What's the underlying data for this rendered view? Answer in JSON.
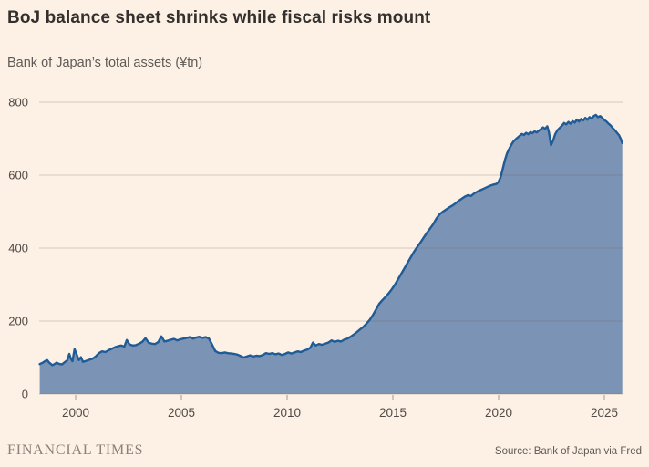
{
  "header": {
    "title": "BoJ balance sheet shrinks while fiscal risks mount",
    "subtitle": "Bank of Japan’s total assets (¥tn)"
  },
  "footer": {
    "brand": "FINANCIAL TIMES",
    "source": "Source: Bank of Japan via Fred"
  },
  "colors": {
    "background": "#fdf1e5",
    "area_fill": "#7b93b4",
    "line": "#1f5c97",
    "grid": "#66605c",
    "axis_text": "#4f4a46"
  },
  "chart_data": {
    "type": "area",
    "title": "BoJ balance sheet shrinks while fiscal risks mount",
    "ylabel": "Bank of Japan’s total assets (¥tn)",
    "xlabel": "",
    "ylim": [
      0,
      800
    ],
    "xlim": [
      1998.3,
      2025.9
    ],
    "y_ticks": [
      0,
      200,
      400,
      600,
      800
    ],
    "x_ticks": [
      2000,
      2005,
      2010,
      2015,
      2020,
      2025
    ],
    "grid": true,
    "legend_position": "none",
    "series_name": "BoJ total assets (¥tn)",
    "points": [
      [
        1998.3,
        82
      ],
      [
        1998.45,
        86
      ],
      [
        1998.55,
        90
      ],
      [
        1998.65,
        93
      ],
      [
        1998.75,
        86
      ],
      [
        1998.9,
        79
      ],
      [
        1999.0,
        82
      ],
      [
        1999.1,
        86
      ],
      [
        1999.2,
        83
      ],
      [
        1999.35,
        81
      ],
      [
        1999.5,
        88
      ],
      [
        1999.6,
        92
      ],
      [
        1999.7,
        110
      ],
      [
        1999.78,
        96
      ],
      [
        1999.85,
        90
      ],
      [
        1999.95,
        123
      ],
      [
        2000.05,
        108
      ],
      [
        2000.15,
        93
      ],
      [
        2000.25,
        101
      ],
      [
        2000.35,
        88
      ],
      [
        2000.5,
        91
      ],
      [
        2000.65,
        94
      ],
      [
        2000.8,
        97
      ],
      [
        2000.95,
        103
      ],
      [
        2001.1,
        112
      ],
      [
        2001.25,
        117
      ],
      [
        2001.4,
        115
      ],
      [
        2001.55,
        120
      ],
      [
        2001.7,
        124
      ],
      [
        2001.85,
        128
      ],
      [
        2002.0,
        131
      ],
      [
        2002.15,
        133
      ],
      [
        2002.3,
        130
      ],
      [
        2002.42,
        148
      ],
      [
        2002.55,
        136
      ],
      [
        2002.7,
        133
      ],
      [
        2002.85,
        134
      ],
      [
        2003.0,
        138
      ],
      [
        2003.15,
        143
      ],
      [
        2003.3,
        153
      ],
      [
        2003.45,
        141
      ],
      [
        2003.6,
        138
      ],
      [
        2003.75,
        137
      ],
      [
        2003.9,
        142
      ],
      [
        2004.05,
        158
      ],
      [
        2004.2,
        144
      ],
      [
        2004.35,
        146
      ],
      [
        2004.5,
        149
      ],
      [
        2004.65,
        151
      ],
      [
        2004.8,
        147
      ],
      [
        2004.95,
        150
      ],
      [
        2005.1,
        152
      ],
      [
        2005.25,
        154
      ],
      [
        2005.4,
        156
      ],
      [
        2005.55,
        152
      ],
      [
        2005.7,
        155
      ],
      [
        2005.85,
        157
      ],
      [
        2006.0,
        154
      ],
      [
        2006.15,
        156
      ],
      [
        2006.3,
        152
      ],
      [
        2006.45,
        136
      ],
      [
        2006.6,
        118
      ],
      [
        2006.75,
        113
      ],
      [
        2006.9,
        112
      ],
      [
        2007.05,
        114
      ],
      [
        2007.2,
        112
      ],
      [
        2007.35,
        111
      ],
      [
        2007.5,
        110
      ],
      [
        2007.65,
        108
      ],
      [
        2007.8,
        104
      ],
      [
        2007.95,
        100
      ],
      [
        2008.1,
        103
      ],
      [
        2008.25,
        106
      ],
      [
        2008.4,
        103
      ],
      [
        2008.55,
        105
      ],
      [
        2008.7,
        104
      ],
      [
        2008.85,
        107
      ],
      [
        2009.0,
        112
      ],
      [
        2009.15,
        110
      ],
      [
        2009.3,
        112
      ],
      [
        2009.45,
        109
      ],
      [
        2009.6,
        111
      ],
      [
        2009.75,
        107
      ],
      [
        2009.9,
        110
      ],
      [
        2010.05,
        114
      ],
      [
        2010.2,
        111
      ],
      [
        2010.35,
        114
      ],
      [
        2010.5,
        117
      ],
      [
        2010.65,
        115
      ],
      [
        2010.8,
        119
      ],
      [
        2010.95,
        122
      ],
      [
        2011.1,
        127
      ],
      [
        2011.22,
        141
      ],
      [
        2011.35,
        133
      ],
      [
        2011.5,
        137
      ],
      [
        2011.65,
        135
      ],
      [
        2011.8,
        138
      ],
      [
        2011.95,
        141
      ],
      [
        2012.1,
        147
      ],
      [
        2012.25,
        143
      ],
      [
        2012.4,
        146
      ],
      [
        2012.55,
        144
      ],
      [
        2012.7,
        149
      ],
      [
        2012.85,
        152
      ],
      [
        2013.0,
        157
      ],
      [
        2013.15,
        163
      ],
      [
        2013.3,
        170
      ],
      [
        2013.45,
        177
      ],
      [
        2013.6,
        184
      ],
      [
        2013.75,
        193
      ],
      [
        2013.9,
        203
      ],
      [
        2014.05,
        216
      ],
      [
        2014.2,
        231
      ],
      [
        2014.35,
        247
      ],
      [
        2014.5,
        257
      ],
      [
        2014.65,
        266
      ],
      [
        2014.8,
        276
      ],
      [
        2014.95,
        287
      ],
      [
        2015.1,
        300
      ],
      [
        2015.25,
        315
      ],
      [
        2015.4,
        330
      ],
      [
        2015.55,
        345
      ],
      [
        2015.7,
        360
      ],
      [
        2015.85,
        375
      ],
      [
        2016.0,
        390
      ],
      [
        2016.15,
        403
      ],
      [
        2016.3,
        415
      ],
      [
        2016.45,
        428
      ],
      [
        2016.6,
        441
      ],
      [
        2016.75,
        453
      ],
      [
        2016.9,
        465
      ],
      [
        2017.05,
        480
      ],
      [
        2017.2,
        492
      ],
      [
        2017.35,
        499
      ],
      [
        2017.5,
        505
      ],
      [
        2017.65,
        511
      ],
      [
        2017.8,
        516
      ],
      [
        2017.95,
        522
      ],
      [
        2018.1,
        529
      ],
      [
        2018.25,
        535
      ],
      [
        2018.4,
        541
      ],
      [
        2018.55,
        545
      ],
      [
        2018.7,
        543
      ],
      [
        2018.85,
        550
      ],
      [
        2019.0,
        555
      ],
      [
        2019.15,
        559
      ],
      [
        2019.3,
        563
      ],
      [
        2019.45,
        567
      ],
      [
        2019.6,
        571
      ],
      [
        2019.75,
        574
      ],
      [
        2019.9,
        576
      ],
      [
        2020.0,
        582
      ],
      [
        2020.1,
        595
      ],
      [
        2020.2,
        618
      ],
      [
        2020.3,
        642
      ],
      [
        2020.4,
        660
      ],
      [
        2020.5,
        672
      ],
      [
        2020.6,
        683
      ],
      [
        2020.7,
        692
      ],
      [
        2020.8,
        698
      ],
      [
        2020.9,
        703
      ],
      [
        2021.0,
        708
      ],
      [
        2021.1,
        713
      ],
      [
        2021.2,
        710
      ],
      [
        2021.3,
        716
      ],
      [
        2021.4,
        712
      ],
      [
        2021.5,
        718
      ],
      [
        2021.6,
        715
      ],
      [
        2021.7,
        720
      ],
      [
        2021.8,
        717
      ],
      [
        2021.9,
        722
      ],
      [
        2022.0,
        726
      ],
      [
        2022.1,
        731
      ],
      [
        2022.2,
        727
      ],
      [
        2022.3,
        734
      ],
      [
        2022.38,
        718
      ],
      [
        2022.48,
        682
      ],
      [
        2022.58,
        696
      ],
      [
        2022.68,
        713
      ],
      [
        2022.78,
        723
      ],
      [
        2022.88,
        729
      ],
      [
        2023.0,
        736
      ],
      [
        2023.1,
        743
      ],
      [
        2023.2,
        739
      ],
      [
        2023.3,
        746
      ],
      [
        2023.4,
        741
      ],
      [
        2023.5,
        748
      ],
      [
        2023.6,
        744
      ],
      [
        2023.7,
        752
      ],
      [
        2023.8,
        747
      ],
      [
        2023.9,
        754
      ],
      [
        2024.0,
        750
      ],
      [
        2024.1,
        757
      ],
      [
        2024.2,
        752
      ],
      [
        2024.3,
        759
      ],
      [
        2024.4,
        755
      ],
      [
        2024.5,
        762
      ],
      [
        2024.6,
        765
      ],
      [
        2024.7,
        759
      ],
      [
        2024.8,
        762
      ],
      [
        2024.9,
        757
      ],
      [
        2025.0,
        751
      ],
      [
        2025.1,
        747
      ],
      [
        2025.2,
        741
      ],
      [
        2025.3,
        736
      ],
      [
        2025.4,
        729
      ],
      [
        2025.5,
        723
      ],
      [
        2025.6,
        716
      ],
      [
        2025.7,
        709
      ],
      [
        2025.78,
        699
      ],
      [
        2025.85,
        688
      ]
    ]
  }
}
